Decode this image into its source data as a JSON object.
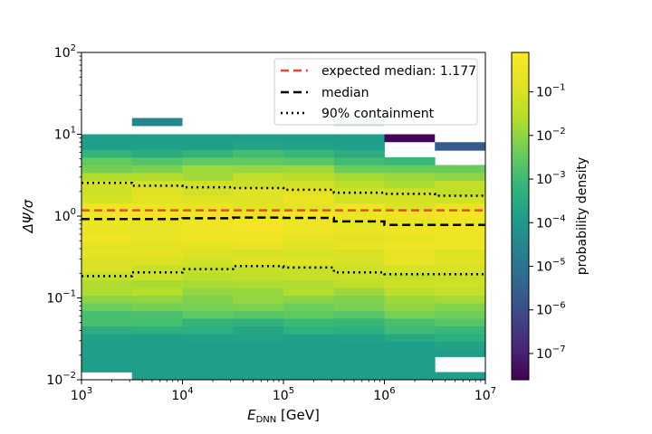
{
  "chart_data": {
    "type": "heatmap",
    "title": "",
    "x_scale": "log",
    "y_scale": "log",
    "xlim": [
      1000,
      10000000
    ],
    "ylim": [
      0.01,
      100
    ],
    "x_bin_edges": [
      1000,
      3162,
      10000,
      31623,
      100000,
      316228,
      1000000,
      3162278,
      10000000
    ],
    "x_ticks": [
      {
        "value": 1000,
        "base": "10",
        "exp": "3"
      },
      {
        "value": 10000,
        "base": "10",
        "exp": "4"
      },
      {
        "value": 100000,
        "base": "10",
        "exp": "5"
      },
      {
        "value": 1000000,
        "base": "10",
        "exp": "6"
      },
      {
        "value": 10000000,
        "base": "10",
        "exp": "7"
      }
    ],
    "y_ticks": [
      {
        "value": 0.01,
        "base": "10",
        "exp": "−2"
      },
      {
        "value": 0.1,
        "base": "10",
        "exp": "−1"
      },
      {
        "value": 1,
        "base": "10",
        "exp": "0"
      },
      {
        "value": 10,
        "base": "10",
        "exp": "1"
      },
      {
        "value": 100,
        "base": "10",
        "exp": "2"
      }
    ],
    "xlabel": {
      "main": "E",
      "sub": "DNN",
      "unit": " [GeV]"
    },
    "ylabel": "ΔΨ/σ",
    "colorbar": {
      "label": "probability density",
      "scale": "log",
      "range": [
        2.5e-08,
        0.8
      ],
      "ticks": [
        {
          "value": 1e-07,
          "base": "10",
          "exp": "−7"
        },
        {
          "value": 1e-06,
          "base": "10",
          "exp": "−6"
        },
        {
          "value": 1e-05,
          "base": "10",
          "exp": "−5"
        },
        {
          "value": 0.0001,
          "base": "10",
          "exp": "−4"
        },
        {
          "value": 0.001,
          "base": "10",
          "exp": "−3"
        },
        {
          "value": 0.01,
          "base": "10",
          "exp": "−2"
        },
        {
          "value": 0.1,
          "base": "10",
          "exp": "−1"
        }
      ],
      "colormap": "viridis"
    },
    "outlier_cells": [
      {
        "x_bin": 1,
        "y_low": 12.6,
        "y_high": 15.8,
        "density": 3e-05
      },
      {
        "x_bin": 5,
        "y_low": 12.6,
        "y_high": 15.8,
        "density": 0.005
      },
      {
        "x_bin": 6,
        "y_low": 8.0,
        "y_high": 10.0,
        "density": 3e-08
      },
      {
        "x_bin": 7,
        "y_low": 6.3,
        "y_high": 8.0,
        "density": 2e-06
      }
    ],
    "series": [
      {
        "name": "expected median: 1.177",
        "style": "dashed",
        "color": "#e24a33",
        "x": [
          1000,
          10000000
        ],
        "y": [
          1.177,
          1.177
        ]
      },
      {
        "name": "median",
        "style": "dashed",
        "color": "#000000",
        "y": [
          0.92,
          0.92,
          0.94,
          0.96,
          0.95,
          0.86,
          0.78,
          0.78
        ]
      },
      {
        "name": "90% containment",
        "style": "dotted",
        "color": "#000000",
        "y_upper": [
          2.55,
          2.35,
          2.25,
          2.2,
          2.1,
          1.93,
          1.87,
          1.77
        ],
        "y_lower": [
          0.185,
          0.205,
          0.225,
          0.245,
          0.235,
          0.205,
          0.195,
          0.195
        ]
      }
    ],
    "legend": {
      "placement": "upper-right"
    }
  }
}
